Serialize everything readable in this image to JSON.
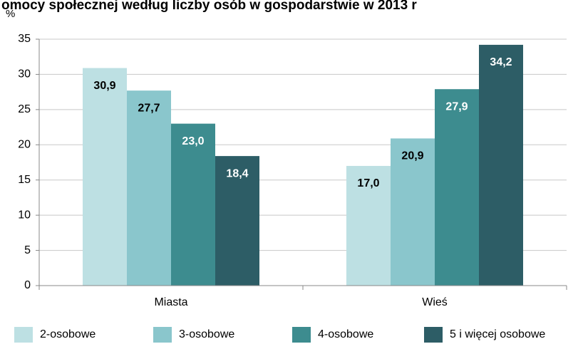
{
  "chart_data": {
    "type": "bar",
    "title": "omocy społecznej według liczby osób w gospodarstwie w 2013 r",
    "y_label": "%",
    "categories": [
      "Miasta",
      "Wieś"
    ],
    "series": [
      {
        "name": "2-osobowe",
        "color": "#bde0e3",
        "values": [
          30.9,
          17.0
        ],
        "value_labels": [
          "30,9",
          "17,0"
        ]
      },
      {
        "name": "3-osobowe",
        "color": "#8ac6cc",
        "values": [
          27.7,
          20.9
        ],
        "value_labels": [
          "27,7",
          "20,9"
        ]
      },
      {
        "name": "4-osobowe",
        "color": "#3d8c8f",
        "values": [
          23.0,
          27.9
        ],
        "value_labels": [
          "23,0",
          "27,9"
        ]
      },
      {
        "name": "5 i więcej osobowe",
        "color": "#2d5d66",
        "values": [
          18.4,
          34.2
        ],
        "value_labels": [
          "18,4",
          "34,2"
        ]
      }
    ],
    "ylim": [
      0,
      35
    ],
    "yticks": [
      0,
      5,
      10,
      15,
      20,
      25,
      30,
      35
    ],
    "grid": true,
    "legend": "bottom"
  }
}
